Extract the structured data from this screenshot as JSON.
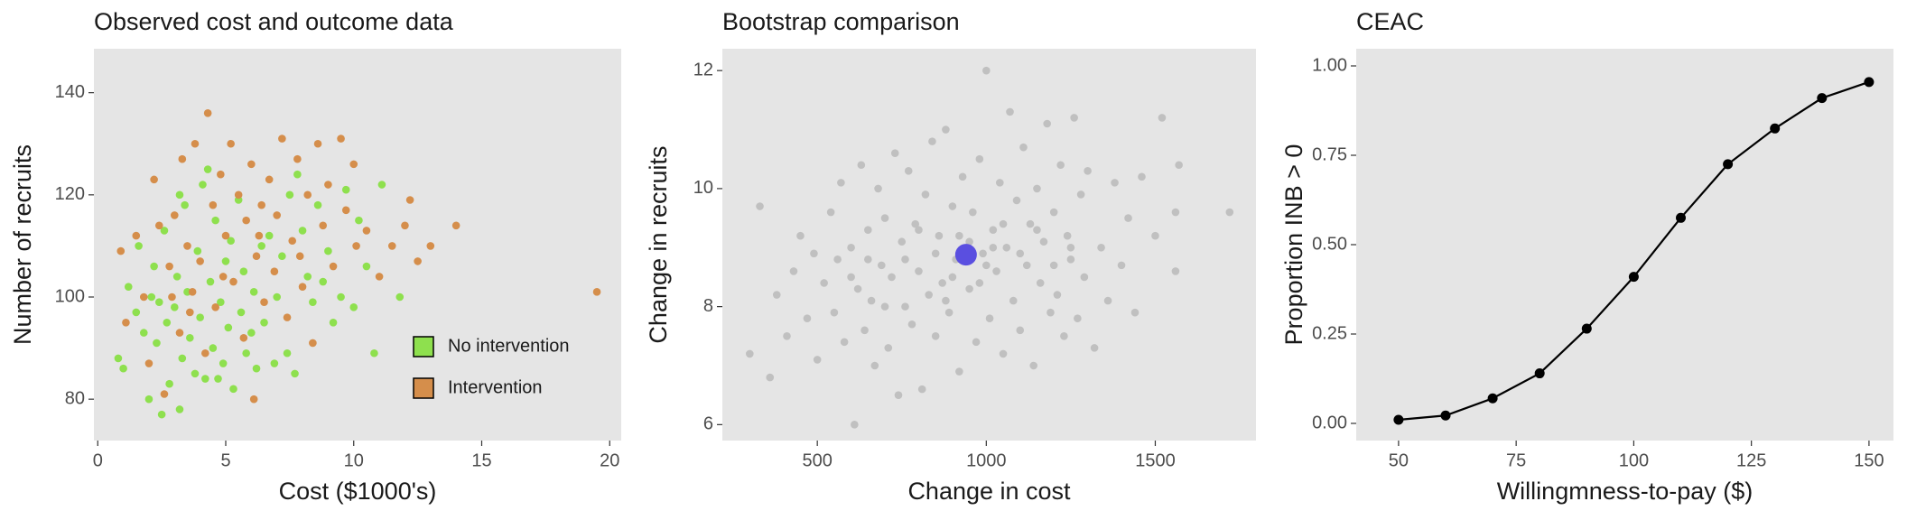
{
  "chart_data": [
    {
      "type": "scatter",
      "title": "Observed cost and outcome data",
      "x_label": "Cost ($1000's)",
      "y_label": "Number of recruits",
      "xlim": [
        -0.15,
        20.45
      ],
      "ylim": [
        71.9,
        148.6
      ],
      "xticks": [
        0,
        5,
        10,
        15,
        20
      ],
      "yticks": [
        80,
        100,
        120,
        140
      ],
      "grid": false,
      "legend": "bottom right",
      "series": [
        {
          "name": "No intervention",
          "color": "#8ee04e",
          "x": [
            0.8,
            1.0,
            1.2,
            1.5,
            1.6,
            1.8,
            2.0,
            2.1,
            2.2,
            2.3,
            2.5,
            2.6,
            2.7,
            2.8,
            3.0,
            3.1,
            3.2,
            3.3,
            3.4,
            3.5,
            3.6,
            3.8,
            3.9,
            4.0,
            4.1,
            4.2,
            4.3,
            4.4,
            4.5,
            4.6,
            4.8,
            4.9,
            5.0,
            5.1,
            5.2,
            5.3,
            5.5,
            5.6,
            5.7,
            5.8,
            6.0,
            6.1,
            6.2,
            6.4,
            6.5,
            6.7,
            6.9,
            7.0,
            7.2,
            7.4,
            7.5,
            7.7,
            7.8,
            8.0,
            8.2,
            8.4,
            8.6,
            8.8,
            9.0,
            9.2,
            9.5,
            9.7,
            10.0,
            10.2,
            10.5,
            10.8,
            11.1,
            11.8,
            3.2,
            2.4,
            4.7
          ],
          "values": [
            88,
            86,
            102,
            97,
            110,
            93,
            80,
            100,
            106,
            91,
            77,
            113,
            95,
            83,
            98,
            104,
            78,
            88,
            118,
            101,
            92,
            85,
            109,
            96,
            122,
            84,
            125,
            103,
            90,
            115,
            99,
            87,
            107,
            94,
            111,
            82,
            119,
            97,
            105,
            89,
            93,
            101,
            86,
            110,
            95,
            112,
            87,
            100,
            108,
            89,
            120,
            85,
            124,
            113,
            104,
            99,
            118,
            103,
            109,
            95,
            100,
            121,
            98,
            115,
            106,
            89,
            122,
            100,
            120,
            99,
            84
          ]
        },
        {
          "name": "Intervention",
          "color": "#d58e4b",
          "x": [
            0.9,
            1.1,
            1.5,
            1.8,
            2.0,
            2.2,
            2.4,
            2.6,
            2.8,
            3.0,
            3.2,
            3.3,
            3.5,
            3.7,
            3.8,
            4.0,
            4.2,
            4.3,
            4.5,
            4.6,
            4.8,
            5.0,
            5.2,
            5.3,
            5.5,
            5.7,
            5.8,
            6.0,
            6.1,
            6.2,
            6.4,
            6.5,
            6.7,
            6.9,
            7.0,
            7.2,
            7.4,
            7.6,
            7.8,
            8.0,
            8.2,
            8.4,
            8.6,
            8.8,
            9.0,
            9.2,
            9.5,
            9.7,
            10.0,
            10.1,
            10.5,
            11.0,
            11.5,
            12.0,
            12.2,
            12.5,
            13.0,
            14.0,
            19.5,
            3.6,
            4.9,
            6.3,
            2.9,
            7.9
          ],
          "values": [
            109,
            95,
            112,
            100,
            87,
            123,
            114,
            81,
            106,
            116,
            93,
            127,
            110,
            101,
            130,
            107,
            89,
            136,
            118,
            98,
            124,
            112,
            130,
            103,
            120,
            92,
            115,
            126,
            80,
            108,
            118,
            99,
            123,
            105,
            116,
            131,
            96,
            111,
            127,
            102,
            120,
            91,
            130,
            114,
            122,
            106,
            131,
            117,
            126,
            110,
            113,
            104,
            110,
            114,
            119,
            107,
            110,
            114,
            101,
            97,
            104,
            112,
            100,
            108
          ]
        }
      ]
    },
    {
      "type": "scatter",
      "title": "Bootstrap comparison",
      "x_label": "Change in cost",
      "y_label": "Change in recruits",
      "xlim": [
        219,
        1798
      ],
      "ylim": [
        5.73,
        12.37
      ],
      "xticks": [
        500,
        1000,
        1500
      ],
      "yticks": [
        6,
        8,
        10,
        12
      ],
      "grid": false,
      "series": [
        {
          "color": "#c0c0c0",
          "x": [
            300,
            330,
            360,
            380,
            410,
            430,
            450,
            470,
            490,
            500,
            520,
            540,
            550,
            560,
            570,
            580,
            600,
            610,
            620,
            630,
            640,
            650,
            660,
            670,
            680,
            690,
            700,
            710,
            720,
            730,
            740,
            750,
            760,
            770,
            780,
            790,
            800,
            810,
            820,
            830,
            840,
            850,
            860,
            870,
            880,
            890,
            900,
            910,
            920,
            930,
            950,
            960,
            970,
            980,
            990,
            1000,
            1010,
            1020,
            1030,
            1040,
            1050,
            1060,
            1070,
            1080,
            1090,
            1100,
            1110,
            1120,
            1130,
            1140,
            1150,
            1160,
            1170,
            1180,
            1190,
            1200,
            1210,
            1220,
            1230,
            1240,
            1250,
            1260,
            1270,
            1280,
            1290,
            1300,
            1320,
            1340,
            1360,
            1380,
            1400,
            1420,
            1440,
            1460,
            1500,
            1520,
            1560,
            1720,
            850,
            900,
            950,
            1000,
            1050,
            880,
            920,
            980,
            1020,
            760,
            800,
            1100,
            1150,
            700,
            650,
            600,
            1200,
            1250,
            1570,
            1560
          ],
          "values": [
            7.2,
            9.7,
            6.8,
            8.2,
            7.5,
            8.6,
            9.2,
            7.8,
            8.9,
            7.1,
            8.4,
            9.6,
            7.9,
            8.8,
            10.1,
            7.4,
            9.0,
            6.0,
            8.3,
            10.4,
            7.6,
            9.3,
            8.1,
            7.0,
            10.0,
            8.7,
            9.5,
            7.3,
            8.5,
            10.6,
            6.5,
            9.1,
            8.0,
            10.3,
            7.7,
            9.4,
            8.6,
            6.6,
            9.9,
            8.2,
            10.8,
            7.5,
            9.2,
            8.4,
            11.0,
            7.9,
            9.7,
            8.8,
            6.9,
            10.2,
            8.3,
            9.6,
            7.4,
            10.5,
            8.9,
            12.0,
            7.8,
            9.3,
            8.6,
            10.1,
            7.2,
            9.0,
            11.3,
            8.1,
            9.8,
            7.6,
            10.7,
            8.7,
            9.4,
            7.0,
            10.0,
            8.4,
            9.1,
            11.1,
            7.9,
            9.6,
            8.2,
            10.4,
            7.5,
            9.2,
            8.8,
            11.2,
            7.8,
            9.9,
            8.5,
            10.3,
            7.3,
            9.0,
            8.1,
            10.1,
            8.7,
            9.5,
            7.9,
            10.2,
            9.2,
            11.2,
            8.6,
            9.6,
            8.9,
            8.5,
            9.1,
            8.7,
            9.4,
            8.1,
            9.2,
            8.4,
            9.0,
            8.8,
            9.3,
            8.9,
            9.3,
            8.0,
            8.8,
            8.5,
            8.7,
            9.0,
            10.4,
            9.6
          ]
        },
        {
          "color": "#5a4fe0",
          "x": [
            940
          ],
          "values": [
            8.88
          ]
        }
      ]
    },
    {
      "type": "line",
      "title": "CEAC",
      "x_label": "Willingmness-to-pay ($)",
      "y_label": "Proportion INB > 0",
      "xlim": [
        41,
        155.2
      ],
      "ylim": [
        -0.048,
        1.048
      ],
      "xticks": [
        50,
        75,
        100,
        125,
        150
      ],
      "yticks": [
        {
          "value": 0,
          "label": "0.00"
        },
        {
          "value": 0.25,
          "label": "0.25"
        },
        {
          "value": 0.5,
          "label": "0.50"
        },
        {
          "value": 0.75,
          "label": "0.75"
        },
        {
          "value": 1,
          "label": "1.00"
        }
      ],
      "grid": false,
      "color": "#000000",
      "x": [
        50,
        60,
        70,
        80,
        90,
        100,
        110,
        120,
        130,
        140,
        150
      ],
      "values": [
        0.01,
        0.022,
        0.07,
        0.14,
        0.265,
        0.41,
        0.575,
        0.725,
        0.825,
        0.91,
        0.955
      ]
    }
  ]
}
